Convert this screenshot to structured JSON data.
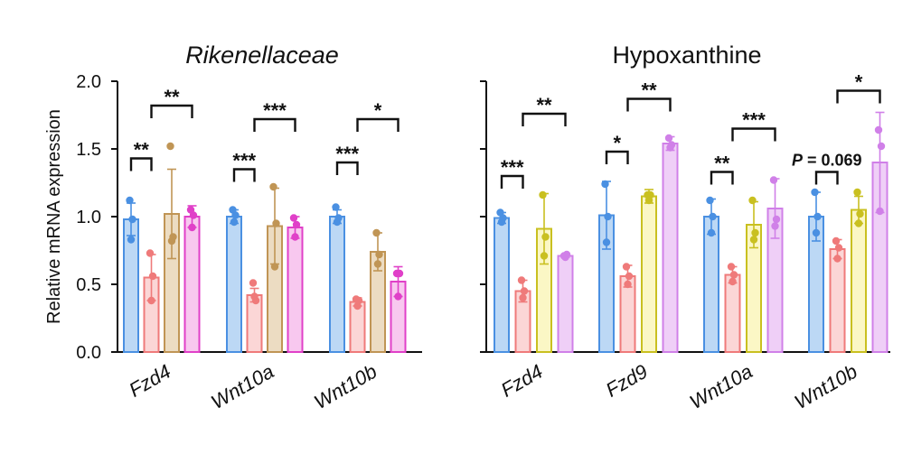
{
  "chart_data": [
    {
      "type": "bar",
      "title": "Rikenellaceae",
      "title_italic": true,
      "ylabel": "Relative mRNA expression",
      "ylim": [
        0,
        2.0
      ],
      "yticks": [
        "0.0",
        "0.5",
        "1.0",
        "1.5",
        "2.0"
      ],
      "categories": [
        "Fzd4",
        "Wnt10a",
        "Wnt10b"
      ],
      "series": [
        {
          "color": "#4a90e2",
          "fill": "#bcd8f5",
          "values": [
            0.98,
            1.0,
            1.0
          ],
          "err": [
            0.12,
            0.05,
            0.05
          ],
          "points": [
            [
              1.12,
              0.83,
              0.98
            ],
            [
              1.05,
              0.96,
              1.01
            ],
            [
              1.07,
              0.96,
              0.99
            ]
          ]
        },
        {
          "color": "#ef7a7a",
          "fill": "#fbd6d6",
          "values": [
            0.55,
            0.42,
            0.37
          ],
          "err": [
            0.17,
            0.05,
            0.03
          ],
          "points": [
            [
              0.73,
              0.38,
              0.56
            ],
            [
              0.51,
              0.41,
              0.38
            ],
            [
              0.39,
              0.34,
              0.38
            ]
          ]
        },
        {
          "color": "#c09555",
          "fill": "#ecdcc2",
          "values": [
            1.02,
            0.93,
            0.74
          ],
          "err": [
            0.33,
            0.28,
            0.14
          ],
          "points": [
            [
              1.52,
              0.82,
              0.85
            ],
            [
              1.22,
              0.63,
              0.95
            ],
            [
              0.88,
              0.65,
              0.72
            ]
          ]
        },
        {
          "color": "#e040c8",
          "fill": "#f8c8ef",
          "values": [
            1.0,
            0.92,
            0.52
          ],
          "err": [
            0.08,
            0.08,
            0.11
          ],
          "points": [
            [
              1.05,
              0.92,
              1.01
            ],
            [
              0.99,
              0.85,
              0.94
            ],
            [
              0.58,
              0.41,
              0.58
            ]
          ]
        }
      ],
      "significance": [
        {
          "category": 0,
          "from": 0,
          "to": 1,
          "y": 1.43,
          "label": "**"
        },
        {
          "category": 0,
          "from": 1,
          "to": 3,
          "y": 1.82,
          "label": "**"
        },
        {
          "category": 1,
          "from": 0,
          "to": 1,
          "y": 1.35,
          "label": "***"
        },
        {
          "category": 1,
          "from": 1,
          "to": 3,
          "y": 1.72,
          "label": "***"
        },
        {
          "category": 2,
          "from": 0,
          "to": 1,
          "y": 1.4,
          "label": "***"
        },
        {
          "category": 2,
          "from": 1,
          "to": 3,
          "y": 1.72,
          "label": "*"
        }
      ]
    },
    {
      "type": "bar",
      "title": "Hypoxanthine",
      "title_italic": false,
      "ylabel": "",
      "ylim": [
        0,
        2.0
      ],
      "categories": [
        "Fzd4",
        "Fzd9",
        "Wnt10a",
        "Wnt10b"
      ],
      "series": [
        {
          "color": "#4a90e2",
          "fill": "#bcd8f5",
          "values": [
            0.99,
            1.01,
            1.0,
            1.0
          ],
          "err": [
            0.04,
            0.25,
            0.13,
            0.18
          ],
          "points": [
            [
              1.03,
              0.96,
              0.99
            ],
            [
              1.24,
              0.81,
              1.0
            ],
            [
              1.12,
              0.88,
              1.0
            ],
            [
              1.18,
              0.88,
              1.0
            ]
          ]
        },
        {
          "color": "#ef7a7a",
          "fill": "#fbd6d6",
          "values": [
            0.45,
            0.56,
            0.57,
            0.76
          ],
          "err": [
            0.08,
            0.08,
            0.06,
            0.07
          ],
          "points": [
            [
              0.53,
              0.4,
              0.45
            ],
            [
              0.63,
              0.5,
              0.56
            ],
            [
              0.63,
              0.52,
              0.57
            ],
            [
              0.82,
              0.69,
              0.77
            ]
          ]
        },
        {
          "color": "#c9c020",
          "fill": "#fbf7c5",
          "values": [
            0.91,
            1.15,
            0.94,
            1.05
          ],
          "err": [
            0.26,
            0.05,
            0.17,
            0.1
          ],
          "points": [
            [
              1.16,
              0.71,
              0.85
            ],
            [
              1.16,
              1.12,
              1.16
            ],
            [
              1.12,
              0.83,
              0.88
            ],
            [
              1.18,
              0.95,
              1.02
            ]
          ]
        },
        {
          "color": "#d080e8",
          "fill": "#efcff7",
          "values": [
            0.71,
            1.54,
            1.06,
            1.4
          ],
          "err": [
            0.01,
            0.05,
            0.22,
            0.37
          ],
          "points": [
            [
              0.71,
              0.7,
              0.72
            ],
            [
              1.58,
              1.51,
              1.53
            ],
            [
              1.27,
              0.93,
              0.98
            ],
            [
              1.64,
              1.04,
              1.52
            ]
          ]
        }
      ],
      "significance": [
        {
          "category": 0,
          "from": 0,
          "to": 1,
          "y": 1.3,
          "label": "***"
        },
        {
          "category": 0,
          "from": 1,
          "to": 3,
          "y": 1.76,
          "label": "**"
        },
        {
          "category": 1,
          "from": 0,
          "to": 1,
          "y": 1.48,
          "label": "*"
        },
        {
          "category": 1,
          "from": 1,
          "to": 3,
          "y": 1.87,
          "label": "**"
        },
        {
          "category": 2,
          "from": 0,
          "to": 1,
          "y": 1.33,
          "label": "**"
        },
        {
          "category": 2,
          "from": 1,
          "to": 3,
          "y": 1.65,
          "label": "***"
        },
        {
          "category": 3,
          "from": 0,
          "to": 1,
          "y": 1.33,
          "label": "P = 0.069",
          "p_prefix": "P",
          "p_rest": " = 0.069"
        },
        {
          "category": 3,
          "from": 1,
          "to": 3,
          "y": 1.93,
          "label": "*"
        }
      ]
    }
  ]
}
